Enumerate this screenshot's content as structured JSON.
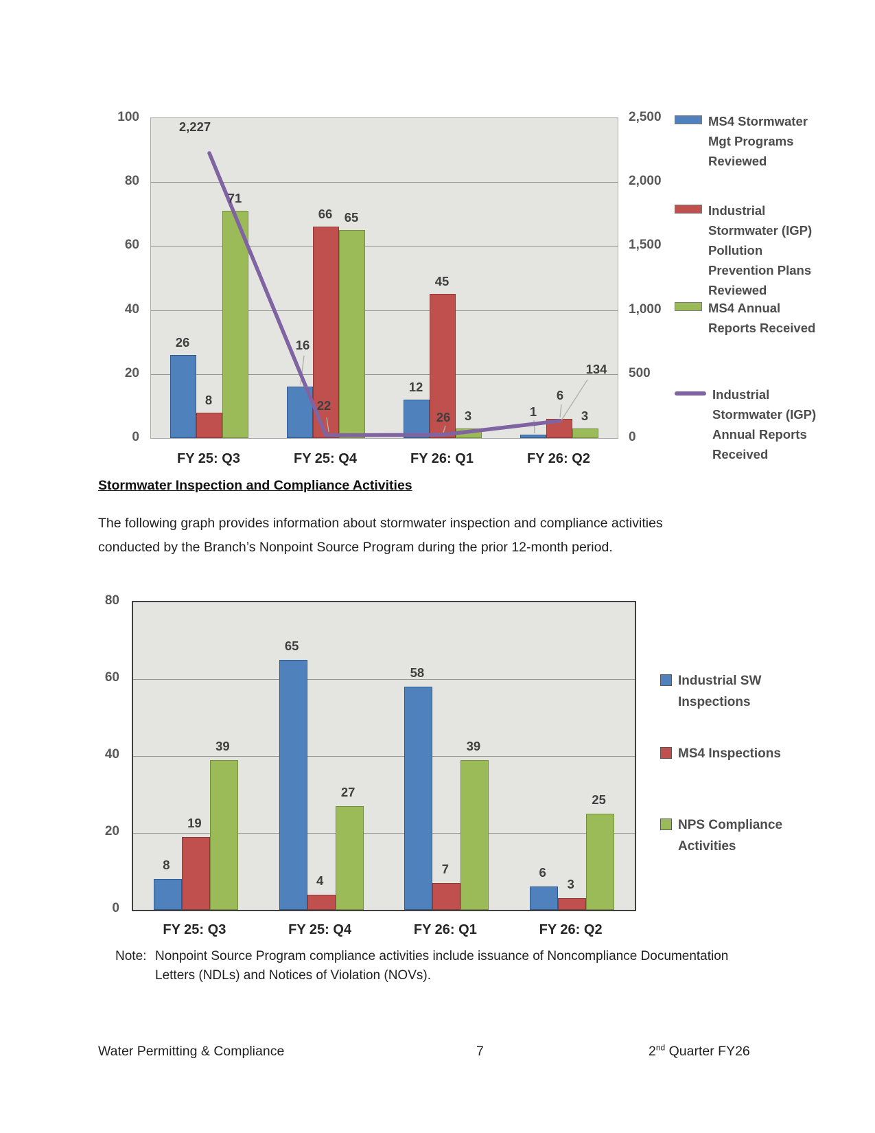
{
  "heading": "Stormwater Inspection and Compliance Activities",
  "intro": {
    "line1": "The following graph provides information about stormwater inspection and compliance activities",
    "line2": "conducted by the Branch’s Nonpoint Source Program during the prior 12-month period."
  },
  "note": {
    "label": "Note:",
    "line1": "Nonpoint Source Program compliance activities include issuance of Noncompliance Documentation",
    "line2": "Letters (NDLs) and Notices of Violation (NOVs)."
  },
  "footer": {
    "left": "Water Permitting & Compliance",
    "page": "7",
    "right": {
      "base": "2",
      "sup": "nd",
      "rest": " Quarter FY26"
    }
  },
  "chart_data": [
    {
      "type": "bar+line",
      "title": "",
      "categories": [
        "FY 25: Q3",
        "FY 25: Q4",
        "FY 26: Q1",
        "FY 26: Q2"
      ],
      "left_axis": {
        "min": 0,
        "max": 100,
        "ticks": [
          0,
          20,
          40,
          60,
          80,
          100
        ],
        "tick_labels": [
          "0",
          "20",
          "40",
          "60",
          "80",
          "100"
        ]
      },
      "right_axis": {
        "min": 0,
        "max": 2500,
        "ticks": [
          0,
          500,
          1000,
          1500,
          2000,
          2500
        ],
        "tick_labels": [
          "0",
          "500",
          "1,000",
          "1,500",
          "2,000",
          "2,500"
        ]
      },
      "series": [
        {
          "name": "MS4 Stormwater Mgt Programs Reviewed",
          "type": "bar",
          "axis": "left",
          "color": "#4F81BD",
          "values": [
            26,
            16,
            12,
            1
          ],
          "value_labels": [
            "26",
            "16",
            "12",
            "1"
          ]
        },
        {
          "name": "Industrial Stormwater (IGP) Pollution Prevention Plans Reviewed",
          "type": "bar",
          "axis": "left",
          "color": "#C0504D",
          "values": [
            8,
            66,
            45,
            6
          ],
          "value_labels": [
            "8",
            "66",
            "45",
            "6"
          ]
        },
        {
          "name": "MS4 Annual Reports Received",
          "type": "bar",
          "axis": "left",
          "color": "#9BBB59",
          "values": [
            71,
            65,
            3,
            3
          ],
          "value_labels": [
            "71",
            "65",
            "3",
            "3"
          ]
        },
        {
          "name": "Industrial Stormwater (IGP) Annual Reports Received",
          "type": "line",
          "axis": "right",
          "color": "#8064A2",
          "values": [
            2227,
            22,
            26,
            134
          ],
          "value_labels": [
            "2,227",
            "22",
            "26",
            "134"
          ]
        }
      ],
      "legend_position": "right",
      "gridlines": true
    },
    {
      "type": "bar",
      "title": "",
      "categories": [
        "FY 25: Q3",
        "FY 25: Q4",
        "FY 26: Q1",
        "FY 26: Q2"
      ],
      "y_axis": {
        "min": 0,
        "max": 80,
        "ticks": [
          0,
          20,
          40,
          60,
          80
        ],
        "tick_labels": [
          "0",
          "20",
          "40",
          "60",
          "80"
        ]
      },
      "series": [
        {
          "name": "Industrial SW Inspections",
          "color": "#4F81BD",
          "values": [
            8,
            65,
            58,
            6
          ],
          "value_labels": [
            "8",
            "65",
            "58",
            "6"
          ]
        },
        {
          "name": "MS4 Inspections",
          "color": "#C0504D",
          "values": [
            19,
            4,
            7,
            3
          ],
          "value_labels": [
            "19",
            "4",
            "7",
            "3"
          ]
        },
        {
          "name": "NPS Compliance Activities",
          "color": "#9BBB59",
          "values": [
            39,
            27,
            39,
            25
          ],
          "value_labels": [
            "39",
            "27",
            "39",
            "25"
          ]
        }
      ],
      "legend_position": "right",
      "gridlines": true
    }
  ]
}
